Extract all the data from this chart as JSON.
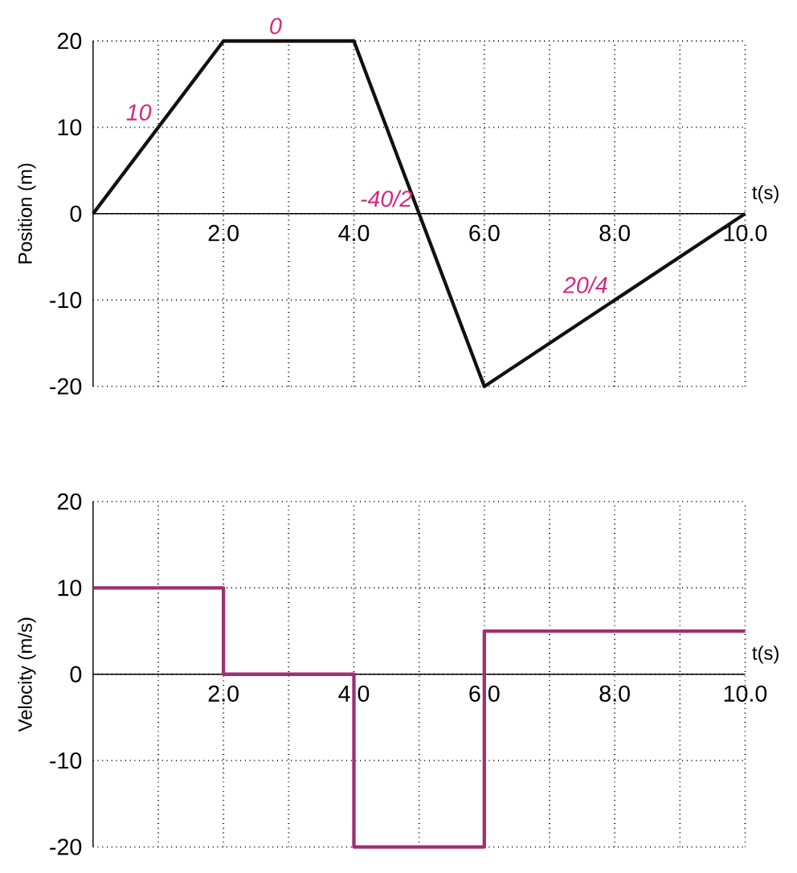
{
  "chart_data": [
    {
      "type": "line",
      "xlabel": "t(s)",
      "ylabel": "Position (m)",
      "x": [
        0,
        2,
        4,
        6,
        10
      ],
      "series": [
        {
          "color": "#111111",
          "values": [
            0,
            20,
            20,
            -20,
            0
          ]
        }
      ],
      "xlim": [
        0,
        10
      ],
      "ylim": [
        -20,
        20
      ],
      "xticks": [
        {
          "value": 0,
          "label": null
        },
        {
          "value": 1,
          "label": null
        },
        {
          "value": 2,
          "label": "2.0"
        },
        {
          "value": 3,
          "label": null
        },
        {
          "value": 4,
          "label": "4.0"
        },
        {
          "value": 5,
          "label": null
        },
        {
          "value": 6,
          "label": "6.0"
        },
        {
          "value": 7,
          "label": null
        },
        {
          "value": 8,
          "label": "8.0"
        },
        {
          "value": 9,
          "label": null
        },
        {
          "value": 10,
          "label": "10.0"
        }
      ],
      "yticks": [
        -20,
        -10,
        0,
        10,
        20
      ],
      "grid": true,
      "marker": "none",
      "line_style": "solid",
      "annotations": [
        {
          "text": "10",
          "x": 1,
          "y": 10
        },
        {
          "text": "0",
          "x": 3,
          "y": 20
        },
        {
          "text": "-40/2",
          "x": 5,
          "y": 0
        },
        {
          "text": "20/4",
          "x": 8,
          "y": -10
        }
      ]
    },
    {
      "type": "step",
      "xlabel": "t(s)",
      "ylabel": "Velocity (m/s)",
      "x": [
        0,
        2,
        4,
        6,
        10
      ],
      "series": [
        {
          "color": "#a03070",
          "values": [
            10,
            0,
            -20,
            5,
            5
          ]
        }
      ],
      "xlim": [
        0,
        10
      ],
      "ylim": [
        -20,
        20
      ],
      "xticks": [
        {
          "value": 0,
          "label": null
        },
        {
          "value": 1,
          "label": null
        },
        {
          "value": 2,
          "label": "2.0"
        },
        {
          "value": 3,
          "label": null
        },
        {
          "value": 4,
          "label": "4.0"
        },
        {
          "value": 5,
          "label": null
        },
        {
          "value": 6,
          "label": "6.0"
        },
        {
          "value": 7,
          "label": null
        },
        {
          "value": 8,
          "label": "8.0"
        },
        {
          "value": 9,
          "label": null
        },
        {
          "value": 10,
          "label": "10.0"
        }
      ],
      "yticks": [
        -20,
        -10,
        0,
        10,
        20
      ],
      "grid": true,
      "marker": "none",
      "line_style": "solid"
    }
  ]
}
